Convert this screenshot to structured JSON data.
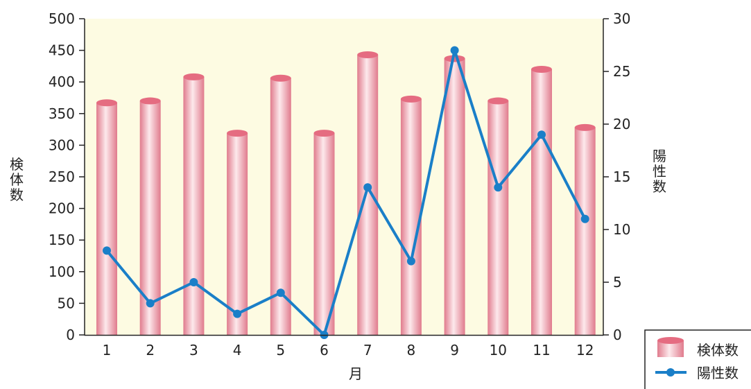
{
  "chart_data": {
    "type": "bar",
    "categories": [
      "1",
      "2",
      "3",
      "4",
      "5",
      "6",
      "7",
      "8",
      "9",
      "10",
      "11",
      "12"
    ],
    "xlabel": "月",
    "ylabel": "検体数",
    "y2label": "陽性数",
    "ylim": [
      0,
      500
    ],
    "y2lim": [
      0,
      30
    ],
    "yticks": [
      "0",
      "50",
      "100",
      "150",
      "200",
      "250",
      "300",
      "350",
      "400",
      "450",
      "500"
    ],
    "y2ticks": [
      "0",
      "5",
      "10",
      "15",
      "20",
      "25",
      "30"
    ],
    "series": [
      {
        "name": "検体数",
        "type": "bar",
        "axis": "left",
        "values": [
          367,
          370,
          408,
          319,
          406,
          319,
          443,
          373,
          437,
          370,
          420,
          328
        ]
      },
      {
        "name": "陽性数",
        "type": "line",
        "axis": "right",
        "values": [
          8,
          3,
          5,
          2,
          4,
          0,
          14,
          7,
          27,
          14,
          19,
          11
        ]
      }
    ],
    "grid": false,
    "legend_position": "bottom-right",
    "colors": {
      "plot_background": "#fdfbe2",
      "bar_light": "#fde7ea",
      "bar_dark": "#e58a98",
      "bar_top": "#e56c81",
      "line": "#1a7fc8"
    }
  }
}
